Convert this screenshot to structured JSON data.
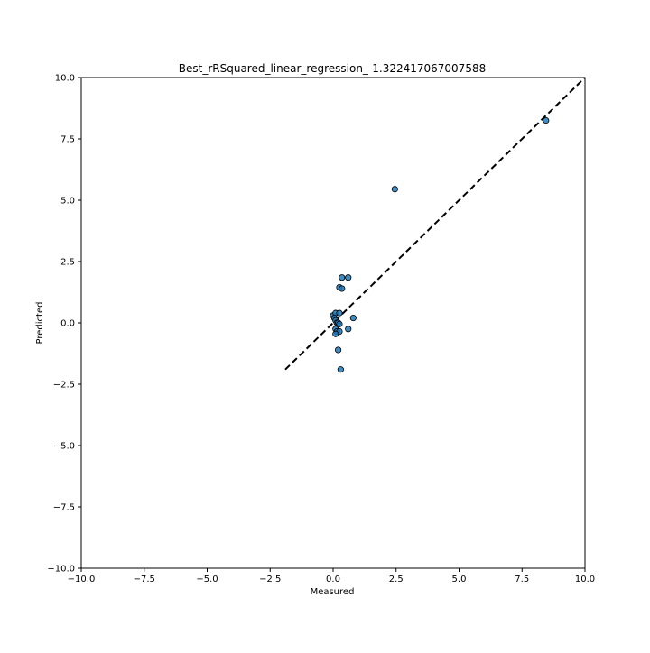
{
  "chart_data": {
    "type": "scatter",
    "title": "Best_rRSquared_linear_regression_-1.322417067007588",
    "xlabel": "Measured",
    "ylabel": "Predicted",
    "xlim": [
      -10.0,
      10.0
    ],
    "ylim": [
      -10.0,
      10.0
    ],
    "x_ticks": [
      -10.0,
      -7.5,
      -5.0,
      -2.5,
      0.0,
      2.5,
      5.0,
      7.5,
      10.0
    ],
    "x_tick_labels": [
      "−10.0",
      "−7.5",
      "−5.0",
      "−2.5",
      "0.0",
      "2.5",
      "5.0",
      "7.5",
      "10.0"
    ],
    "y_ticks": [
      -10.0,
      -7.5,
      -5.0,
      -2.5,
      0.0,
      2.5,
      5.0,
      7.5,
      10.0
    ],
    "y_tick_labels": [
      "−10.0",
      "−7.5",
      "−5.0",
      "−2.5",
      "0.0",
      "2.5",
      "5.0",
      "7.5",
      "10.0"
    ],
    "grid": false,
    "marker_color": "#1f77b4",
    "marker_edge_color": "#000000",
    "reference_line": {
      "style": "dashed",
      "color": "#000000",
      "x": [
        -1.9,
        10.0
      ],
      "y": [
        -1.9,
        10.0
      ]
    },
    "series": [
      {
        "x": [
          8.45,
          2.45,
          0.35,
          0.6,
          0.25,
          0.35,
          0.0,
          0.1,
          0.25,
          0.05,
          0.1,
          0.15,
          0.2,
          0.25,
          0.8,
          0.6,
          0.1,
          0.15,
          0.25,
          0.3,
          0.1,
          0.2
        ],
        "y": [
          8.25,
          5.45,
          1.85,
          1.85,
          1.45,
          1.4,
          0.3,
          0.4,
          0.4,
          0.2,
          0.1,
          0.0,
          0.0,
          -0.05,
          0.2,
          -0.25,
          -0.25,
          -0.35,
          -0.35,
          -1.9,
          -0.45,
          -1.1
        ]
      }
    ]
  }
}
